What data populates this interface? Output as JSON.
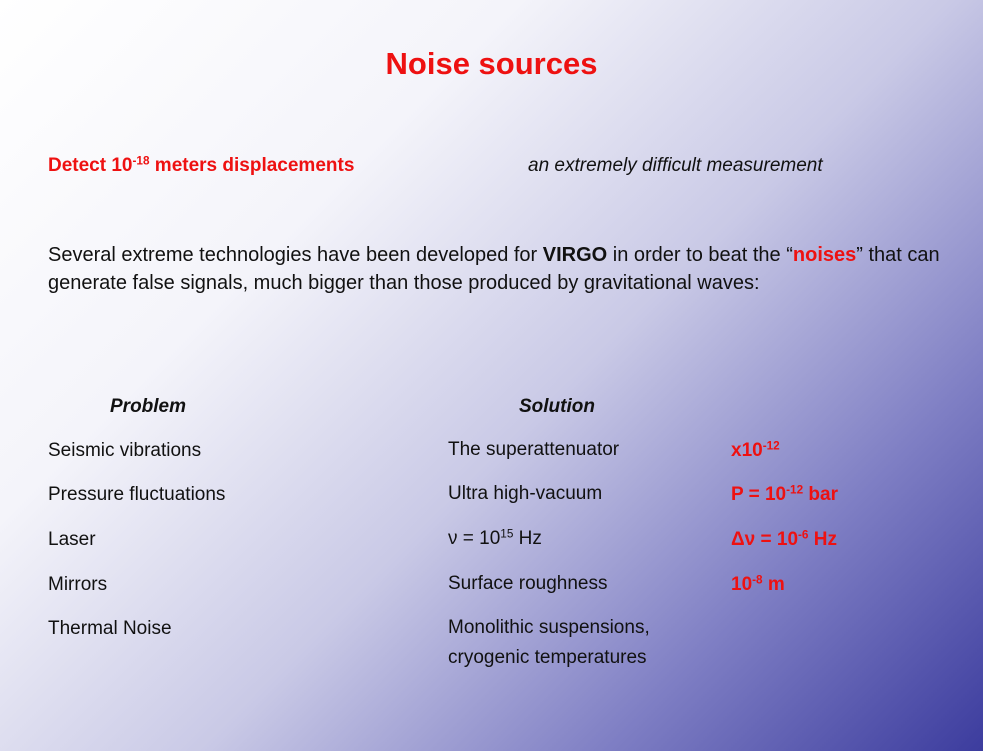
{
  "title": "Noise sources",
  "headline": {
    "parts": [
      "Detect 10",
      "-18",
      " meters displacements"
    ],
    "note": "an extremely difficult measurement"
  },
  "paragraph": [
    "Several extreme technologies have been developed for ",
    "VIRGO",
    " in order to beat the “",
    "noises",
    "” that can generate false signals, much bigger than those produced by gravitational waves:"
  ],
  "table": {
    "headers": [
      "Problem",
      "Solution"
    ],
    "rows": [
      {
        "problem": "Seismic vibrations",
        "solution": [
          "The superattenuator"
        ],
        "value": [
          "x10",
          "-12"
        ]
      },
      {
        "problem": "Pressure fluctuations",
        "solution": [
          "Ultra high-vacuum"
        ],
        "value": [
          "P = 10",
          "-12",
          " bar"
        ]
      },
      {
        "problem": "Laser",
        "solution": [
          "ν = 10",
          "15",
          " Hz"
        ],
        "value": [
          "Δν = 10",
          "-6",
          " Hz"
        ]
      },
      {
        "problem": "Mirrors",
        "solution": [
          "Surface roughness"
        ],
        "value": [
          "10",
          "-8",
          " m"
        ]
      },
      {
        "problem": "Thermal Noise",
        "solution": [
          "Monolithic suspensions,",
          "cryogenic temperatures"
        ]
      }
    ]
  }
}
